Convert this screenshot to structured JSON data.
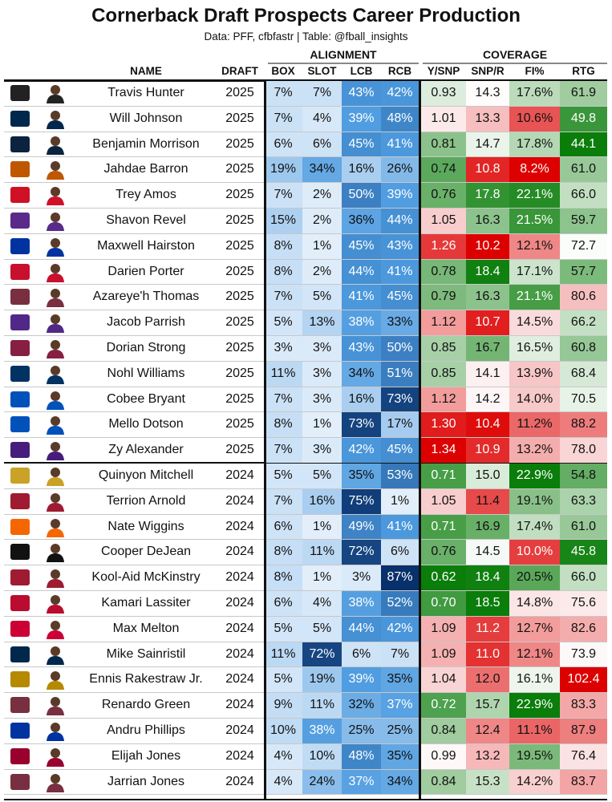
{
  "title": "Cornerback Draft Prospects Career Production",
  "subtitle": "Data: PFF, cfbfastr | Table: @fball_insights",
  "groups": {
    "alignment": "ALIGNMENT",
    "coverage": "COVERAGE"
  },
  "columns": [
    "NAME",
    "DRAFT",
    "BOX",
    "SLOT",
    "LCB",
    "RCB",
    "Y/SNP",
    "SNP/R",
    "FI%",
    "RTG"
  ],
  "chart_data": {
    "type": "table",
    "rows": [
      {
        "name": "Travis Hunter",
        "draft": "2025",
        "box": "7%",
        "slot": "7%",
        "lcb": "43%",
        "rcb": "42%",
        "ysnp": "0.93",
        "snpr": "14.3",
        "fi": "17.6%",
        "rtg": "61.9",
        "logo": "colorado-logo",
        "logo_color": "#222222"
      },
      {
        "name": "Will Johnson",
        "draft": "2025",
        "box": "7%",
        "slot": "4%",
        "lcb": "39%",
        "rcb": "48%",
        "ysnp": "1.01",
        "snpr": "13.3",
        "fi": "10.6%",
        "rtg": "49.8",
        "logo": "michigan-logo",
        "logo_color": "#00274c"
      },
      {
        "name": "Benjamin Morrison",
        "draft": "2025",
        "box": "6%",
        "slot": "6%",
        "lcb": "45%",
        "rcb": "41%",
        "ysnp": "0.81",
        "snpr": "14.7",
        "fi": "17.8%",
        "rtg": "44.1",
        "logo": "notre-dame-logo",
        "logo_color": "#0c2340"
      },
      {
        "name": "Jahdae Barron",
        "draft": "2025",
        "box": "19%",
        "slot": "34%",
        "lcb": "16%",
        "rcb": "26%",
        "ysnp": "0.74",
        "snpr": "10.8",
        "fi": "8.2%",
        "rtg": "61.0",
        "logo": "texas-logo",
        "logo_color": "#bf5700"
      },
      {
        "name": "Trey Amos",
        "draft": "2025",
        "box": "7%",
        "slot": "2%",
        "lcb": "50%",
        "rcb": "39%",
        "ysnp": "0.76",
        "snpr": "17.8",
        "fi": "22.1%",
        "rtg": "66.0",
        "logo": "ole-miss-logo",
        "logo_color": "#ce1126"
      },
      {
        "name": "Shavon Revel",
        "draft": "2025",
        "box": "15%",
        "slot": "2%",
        "lcb": "36%",
        "rcb": "44%",
        "ysnp": "1.05",
        "snpr": "16.3",
        "fi": "21.5%",
        "rtg": "59.7",
        "logo": "east-carolina-logo",
        "logo_color": "#592a8a"
      },
      {
        "name": "Maxwell Hairston",
        "draft": "2025",
        "box": "8%",
        "slot": "1%",
        "lcb": "45%",
        "rcb": "43%",
        "ysnp": "1.26",
        "snpr": "10.2",
        "fi": "12.1%",
        "rtg": "72.7",
        "logo": "kentucky-logo",
        "logo_color": "#0033a0"
      },
      {
        "name": "Darien Porter",
        "draft": "2025",
        "box": "8%",
        "slot": "2%",
        "lcb": "44%",
        "rcb": "41%",
        "ysnp": "0.78",
        "snpr": "18.4",
        "fi": "17.1%",
        "rtg": "57.7",
        "logo": "iowa-state-logo",
        "logo_color": "#c8102e"
      },
      {
        "name": "Azareye'h Thomas",
        "draft": "2025",
        "box": "7%",
        "slot": "5%",
        "lcb": "41%",
        "rcb": "45%",
        "ysnp": "0.79",
        "snpr": "16.3",
        "fi": "21.1%",
        "rtg": "80.6",
        "logo": "florida-state-logo",
        "logo_color": "#782f40"
      },
      {
        "name": "Jacob Parrish",
        "draft": "2025",
        "box": "5%",
        "slot": "13%",
        "lcb": "38%",
        "rcb": "33%",
        "ysnp": "1.12",
        "snpr": "10.7",
        "fi": "14.5%",
        "rtg": "66.2",
        "logo": "kansas-state-logo",
        "logo_color": "#512888"
      },
      {
        "name": "Dorian Strong",
        "draft": "2025",
        "box": "3%",
        "slot": "3%",
        "lcb": "43%",
        "rcb": "50%",
        "ysnp": "0.85",
        "snpr": "16.7",
        "fi": "16.5%",
        "rtg": "60.8",
        "logo": "virginia-tech-logo",
        "logo_color": "#861f41"
      },
      {
        "name": "Nohl Williams",
        "draft": "2025",
        "box": "11%",
        "slot": "3%",
        "lcb": "34%",
        "rcb": "51%",
        "ysnp": "0.85",
        "snpr": "14.1",
        "fi": "13.9%",
        "rtg": "68.4",
        "logo": "cal-logo",
        "logo_color": "#003262"
      },
      {
        "name": "Cobee Bryant",
        "draft": "2025",
        "box": "7%",
        "slot": "3%",
        "lcb": "16%",
        "rcb": "73%",
        "ysnp": "1.12",
        "snpr": "14.2",
        "fi": "14.0%",
        "rtg": "70.5",
        "logo": "kansas-logo",
        "logo_color": "#0051ba"
      },
      {
        "name": "Mello Dotson",
        "draft": "2025",
        "box": "8%",
        "slot": "1%",
        "lcb": "73%",
        "rcb": "17%",
        "ysnp": "1.30",
        "snpr": "10.4",
        "fi": "11.2%",
        "rtg": "88.2",
        "logo": "kansas-logo",
        "logo_color": "#0051ba"
      },
      {
        "name": "Zy Alexander",
        "draft": "2025",
        "box": "7%",
        "slot": "3%",
        "lcb": "42%",
        "rcb": "45%",
        "ysnp": "1.34",
        "snpr": "10.9",
        "fi": "13.2%",
        "rtg": "78.0",
        "logo": "lsu-logo",
        "logo_color": "#461d7c"
      },
      {
        "name": "Quinyon Mitchell",
        "draft": "2024",
        "box": "5%",
        "slot": "5%",
        "lcb": "35%",
        "rcb": "53%",
        "ysnp": "0.71",
        "snpr": "15.0",
        "fi": "22.9%",
        "rtg": "54.8",
        "logo": "toledo-logo",
        "logo_color": "#c9a227"
      },
      {
        "name": "Terrion Arnold",
        "draft": "2024",
        "box": "7%",
        "slot": "16%",
        "lcb": "75%",
        "rcb": "1%",
        "ysnp": "1.05",
        "snpr": "11.4",
        "fi": "19.1%",
        "rtg": "63.3",
        "logo": "alabama-logo",
        "logo_color": "#9e1b32"
      },
      {
        "name": "Nate Wiggins",
        "draft": "2024",
        "box": "6%",
        "slot": "1%",
        "lcb": "49%",
        "rcb": "41%",
        "ysnp": "0.71",
        "snpr": "16.9",
        "fi": "17.4%",
        "rtg": "61.0",
        "logo": "clemson-logo",
        "logo_color": "#f56600"
      },
      {
        "name": "Cooper DeJean",
        "draft": "2024",
        "box": "8%",
        "slot": "11%",
        "lcb": "72%",
        "rcb": "6%",
        "ysnp": "0.76",
        "snpr": "14.5",
        "fi": "10.0%",
        "rtg": "45.8",
        "logo": "iowa-logo",
        "logo_color": "#111111"
      },
      {
        "name": "Kool-Aid McKinstry",
        "draft": "2024",
        "box": "8%",
        "slot": "1%",
        "lcb": "3%",
        "rcb": "87%",
        "ysnp": "0.62",
        "snpr": "18.4",
        "fi": "20.5%",
        "rtg": "66.0",
        "logo": "alabama-logo",
        "logo_color": "#9e1b32"
      },
      {
        "name": "Kamari Lassiter",
        "draft": "2024",
        "box": "6%",
        "slot": "4%",
        "lcb": "38%",
        "rcb": "52%",
        "ysnp": "0.70",
        "snpr": "18.5",
        "fi": "14.8%",
        "rtg": "75.6",
        "logo": "georgia-logo",
        "logo_color": "#ba0c2f"
      },
      {
        "name": "Max Melton",
        "draft": "2024",
        "box": "5%",
        "slot": "5%",
        "lcb": "44%",
        "rcb": "42%",
        "ysnp": "1.09",
        "snpr": "11.2",
        "fi": "12.7%",
        "rtg": "82.6",
        "logo": "rutgers-logo",
        "logo_color": "#cc0033"
      },
      {
        "name": "Mike Sainristil",
        "draft": "2024",
        "box": "11%",
        "slot": "72%",
        "lcb": "6%",
        "rcb": "7%",
        "ysnp": "1.09",
        "snpr": "11.0",
        "fi": "12.1%",
        "rtg": "73.9",
        "logo": "michigan-logo",
        "logo_color": "#00274c"
      },
      {
        "name": "Ennis Rakestraw Jr.",
        "draft": "2024",
        "box": "5%",
        "slot": "19%",
        "lcb": "39%",
        "rcb": "35%",
        "ysnp": "1.04",
        "snpr": "12.0",
        "fi": "16.1%",
        "rtg": "102.4",
        "logo": "missouri-logo",
        "logo_color": "#b58a00"
      },
      {
        "name": "Renardo Green",
        "draft": "2024",
        "box": "9%",
        "slot": "11%",
        "lcb": "32%",
        "rcb": "37%",
        "ysnp": "0.72",
        "snpr": "15.7",
        "fi": "22.9%",
        "rtg": "83.3",
        "logo": "florida-state-logo",
        "logo_color": "#782f40"
      },
      {
        "name": "Andru Phillips",
        "draft": "2024",
        "box": "10%",
        "slot": "38%",
        "lcb": "25%",
        "rcb": "25%",
        "ysnp": "0.84",
        "snpr": "12.4",
        "fi": "11.1%",
        "rtg": "87.9",
        "logo": "kentucky-logo",
        "logo_color": "#0033a0"
      },
      {
        "name": "Elijah Jones",
        "draft": "2024",
        "box": "4%",
        "slot": "10%",
        "lcb": "48%",
        "rcb": "35%",
        "ysnp": "0.99",
        "snpr": "13.2",
        "fi": "19.5%",
        "rtg": "76.4",
        "logo": "boston-college-logo",
        "logo_color": "#98002e"
      },
      {
        "name": "Jarrian Jones",
        "draft": "2024",
        "box": "4%",
        "slot": "24%",
        "lcb": "37%",
        "rcb": "34%",
        "ysnp": "0.84",
        "snpr": "15.3",
        "fi": "14.2%",
        "rtg": "83.7",
        "logo": "florida-state-logo",
        "logo_color": "#782f40"
      }
    ],
    "color_scales": {
      "alignment": "white-to-blue (higher = darker blue)",
      "ysnp": "green (low) to red (high)",
      "snpr": "red (low) to green (high)",
      "fi": "red (low) to green (high)",
      "rtg": "green (low) to red (high)"
    },
    "colors": {
      "blue_dark": "#08306b",
      "green_dark": "#0a7d0a",
      "red_dark": "#dd0000"
    }
  }
}
